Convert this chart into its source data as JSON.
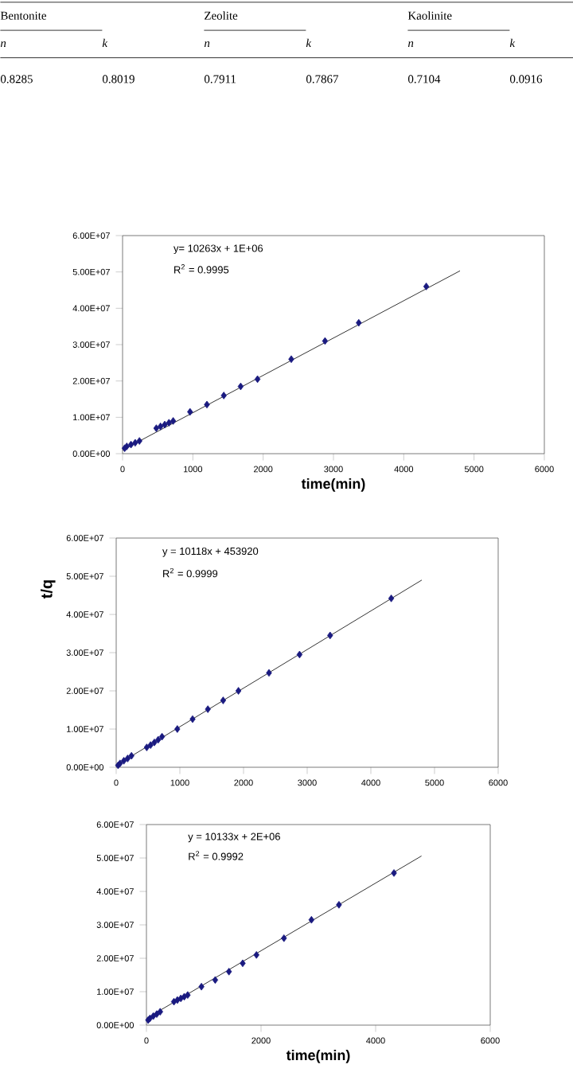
{
  "chart_data": [
    {
      "type": "other",
      "annotations": [
        "Bentonite",
        "Zeolite",
        "Kaolinite",
        "n",
        "k",
        "n",
        "k",
        "n",
        "k",
        "0.8285",
        "0.8019",
        "0.7911",
        "0.7867",
        "0.7104",
        "0.0916"
      ]
    },
    {
      "type": "scatter",
      "xlabel": "time(min)",
      "xlim": [
        0,
        6000
      ],
      "xticks": [
        0,
        1000,
        2000,
        3000,
        4000,
        5000,
        6000
      ],
      "ylim": [
        0,
        60000000
      ],
      "yticks": [
        {
          "value": 0,
          "label": "0.00E+00"
        },
        {
          "value": 10000000,
          "label": "1.00E+07"
        },
        {
          "value": 20000000,
          "label": "2.00E+07"
        },
        {
          "value": 30000000,
          "label": "3.00E+07"
        },
        {
          "value": 40000000,
          "label": "4.00E+07"
        },
        {
          "value": 50000000,
          "label": "5.00E+07"
        },
        {
          "value": 60000000,
          "label": "6.00E+07"
        }
      ],
      "marker": "diamond",
      "annotations": [
        "y= 10263x + 1E+06",
        "R$^{2}$ = 0.9995"
      ],
      "series": [
        {
          "color": "#1a1a80",
          "x": [
            30,
            60,
            120,
            180,
            240,
            480,
            540,
            600,
            660,
            720,
            960,
            1200,
            1440,
            1680,
            1920,
            2400,
            2880,
            3360,
            4320
          ],
          "values": [
            1500000,
            2000000,
            2500000,
            3000000,
            3500000,
            7000000,
            7500000,
            8000000,
            8500000,
            9000000,
            11500000,
            13500000,
            16000000,
            18500000,
            20500000,
            26000000,
            31000000,
            36000000,
            46000000
          ]
        },
        {
          "type": "line",
          "color": "#333333",
          "marker": "none",
          "x": [
            0,
            4800
          ],
          "values": [
            1000000,
            50300000
          ]
        }
      ]
    },
    {
      "type": "scatter",
      "ylabel": "t/q",
      "xlim": [
        0,
        6000
      ],
      "xticks": [
        0,
        1000,
        2000,
        3000,
        4000,
        5000,
        6000
      ],
      "ylim": [
        0,
        60000000
      ],
      "yticks": [
        {
          "value": 0,
          "label": "0.00E+00"
        },
        {
          "value": 10000000,
          "label": "1.00E+07"
        },
        {
          "value": 20000000,
          "label": "2.00E+07"
        },
        {
          "value": 30000000,
          "label": "3.00E+07"
        },
        {
          "value": 40000000,
          "label": "4.00E+07"
        },
        {
          "value": 50000000,
          "label": "5.00E+07"
        },
        {
          "value": 60000000,
          "label": "6.00E+07"
        }
      ],
      "marker": "diamond",
      "annotations": [
        "y = 10118x + 453920",
        "R$^{2}$ = 0.9999"
      ],
      "series": [
        {
          "color": "#1a1a80",
          "x": [
            30,
            60,
            120,
            180,
            240,
            480,
            540,
            600,
            660,
            720,
            960,
            1200,
            1440,
            1680,
            1920,
            2400,
            2880,
            3360,
            4320
          ],
          "values": [
            500000,
            1000000,
            1700000,
            2300000,
            3000000,
            5200000,
            5800000,
            6500000,
            7200000,
            8000000,
            10000000,
            12600000,
            15200000,
            17500000,
            20000000,
            24700000,
            29500000,
            34500000,
            44200000
          ]
        },
        {
          "type": "line",
          "color": "#333333",
          "marker": "none",
          "x": [
            0,
            4800
          ],
          "values": [
            500000,
            49000000
          ]
        }
      ]
    },
    {
      "type": "scatter",
      "xlabel": "time(min)",
      "xlim": [
        0,
        6000
      ],
      "xticks": [
        0,
        2000,
        4000,
        6000
      ],
      "ylim": [
        0,
        60000000
      ],
      "yticks": [
        {
          "value": 0,
          "label": "0.00E+00"
        },
        {
          "value": 10000000,
          "label": "1.00E+07"
        },
        {
          "value": 20000000,
          "label": "2.00E+07"
        },
        {
          "value": 30000000,
          "label": "3.00E+07"
        },
        {
          "value": 40000000,
          "label": "4.00E+07"
        },
        {
          "value": 50000000,
          "label": "5.00E+07"
        },
        {
          "value": 60000000,
          "label": "6.00E+07"
        }
      ],
      "marker": "diamond",
      "annotations": [
        "y = 10133x + 2E+06",
        "R$^{2}$ = 0.9992"
      ],
      "series": [
        {
          "color": "#1a1a80",
          "x": [
            30,
            60,
            120,
            180,
            240,
            480,
            540,
            600,
            660,
            720,
            960,
            1200,
            1440,
            1680,
            1920,
            2400,
            2880,
            3360,
            4320
          ],
          "values": [
            1500000,
            2000000,
            2700000,
            3300000,
            4000000,
            7000000,
            7500000,
            8000000,
            8500000,
            9000000,
            11500000,
            13500000,
            16000000,
            18500000,
            21000000,
            26000000,
            31500000,
            36000000,
            45500000
          ]
        },
        {
          "type": "line",
          "color": "#333333",
          "marker": "none",
          "x": [
            0,
            4800
          ],
          "values": [
            2000000,
            50600000
          ]
        }
      ]
    }
  ]
}
